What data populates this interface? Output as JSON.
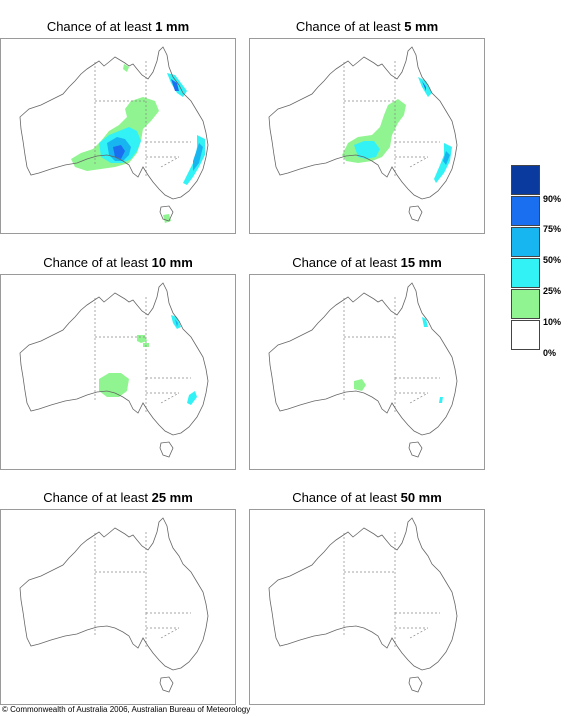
{
  "panels": [
    {
      "prefix": "Chance of at least ",
      "amount": "1 mm",
      "level": 1
    },
    {
      "prefix": "Chance of at least ",
      "amount": "5 mm",
      "level": 5
    },
    {
      "prefix": "Chance of at least ",
      "amount": "10 mm",
      "level": 10
    },
    {
      "prefix": "Chance of at least ",
      "amount": "15 mm",
      "level": 15
    },
    {
      "prefix": "Chance of at least ",
      "amount": "25 mm",
      "level": 25
    },
    {
      "prefix": "Chance of at least ",
      "amount": "50 mm",
      "level": 50
    }
  ],
  "legend": {
    "labels": [
      "90%",
      "75%",
      "50%",
      "25%",
      "10%",
      "0%"
    ],
    "colors": [
      "#0a3a9e",
      "#1a6ef0",
      "#18b6f0",
      "#33f2f5",
      "#90f590",
      "#ffffff"
    ]
  },
  "credit": "© Commonwealth of Australia 2006, Australian Bureau of Meteorology"
}
